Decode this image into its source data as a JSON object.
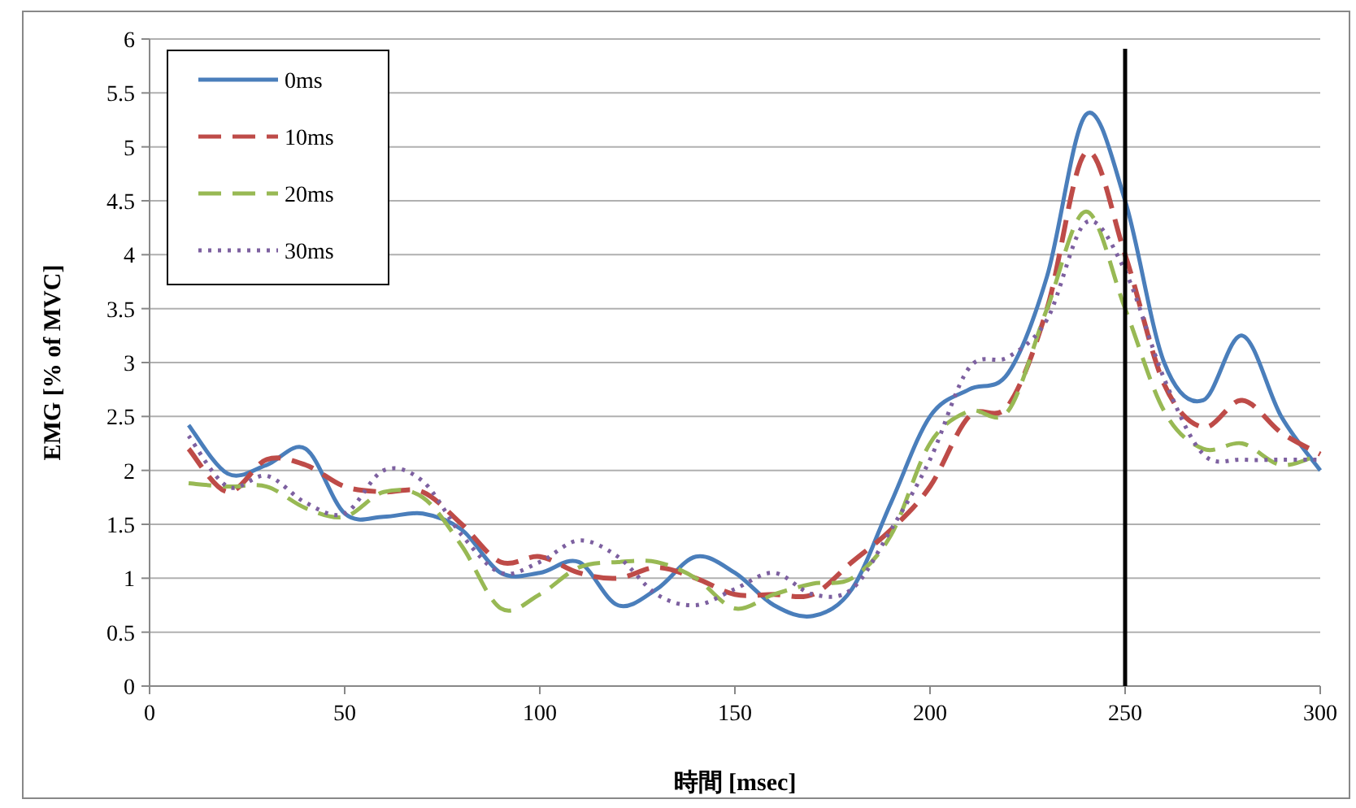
{
  "chart_data": {
    "type": "line",
    "xlabel": "時間 [msec]",
    "ylabel": "EMG [% of MVC]",
    "x": [
      10,
      20,
      30,
      40,
      50,
      60,
      70,
      80,
      90,
      100,
      110,
      120,
      130,
      140,
      150,
      160,
      170,
      180,
      190,
      200,
      210,
      220,
      230,
      240,
      250,
      260,
      270,
      280,
      290,
      300
    ],
    "series": [
      {
        "name": "0ms",
        "color": "#4a7ebb",
        "line_style": "solid",
        "values": [
          2.42,
          1.97,
          2.05,
          2.2,
          1.6,
          1.57,
          1.6,
          1.45,
          1.05,
          1.05,
          1.15,
          0.75,
          0.9,
          1.2,
          1.05,
          0.75,
          0.65,
          0.9,
          1.7,
          2.5,
          2.75,
          2.9,
          3.8,
          5.3,
          4.5,
          3.0,
          2.65,
          3.25,
          2.5,
          2.0
        ]
      },
      {
        "name": "10ms",
        "color": "#be4b48",
        "line_style": "dashed",
        "values": [
          2.2,
          1.8,
          2.1,
          2.05,
          1.85,
          1.8,
          1.8,
          1.5,
          1.15,
          1.2,
          1.05,
          1.0,
          1.1,
          1.0,
          0.85,
          0.85,
          0.85,
          1.15,
          1.45,
          1.85,
          2.5,
          2.6,
          3.5,
          4.95,
          4.0,
          2.8,
          2.4,
          2.65,
          2.35,
          2.15
        ]
      },
      {
        "name": "20ms",
        "color": "#98b954",
        "line_style": "dashed",
        "values": [
          1.88,
          1.85,
          1.85,
          1.65,
          1.57,
          1.8,
          1.75,
          1.3,
          0.72,
          0.85,
          1.1,
          1.15,
          1.15,
          1.0,
          0.72,
          0.85,
          0.95,
          1.0,
          1.4,
          2.25,
          2.55,
          2.55,
          3.5,
          4.4,
          3.5,
          2.55,
          2.2,
          2.25,
          2.05,
          2.15
        ]
      },
      {
        "name": "30ms",
        "color": "#7d60a0",
        "line_style": "dotted",
        "values": [
          2.32,
          1.85,
          1.95,
          1.7,
          1.6,
          2.0,
          1.9,
          1.4,
          1.05,
          1.15,
          1.35,
          1.2,
          0.85,
          0.75,
          0.9,
          1.05,
          0.85,
          0.9,
          1.45,
          2.1,
          2.95,
          3.05,
          3.4,
          4.3,
          3.85,
          2.85,
          2.15,
          2.1,
          2.1,
          2.1
        ]
      }
    ],
    "xlim": [
      0,
      300
    ],
    "xticks": [
      0,
      50,
      100,
      150,
      200,
      250,
      300
    ],
    "ylim": [
      0,
      6
    ],
    "yticks": [
      0,
      0.5,
      1,
      1.5,
      2,
      2.5,
      3,
      3.5,
      4,
      4.5,
      5,
      5.5,
      6
    ],
    "grid": "y",
    "legend": "top left",
    "ref_lines": [
      {
        "axis": "x",
        "value": 250,
        "color": "#000000"
      }
    ]
  }
}
